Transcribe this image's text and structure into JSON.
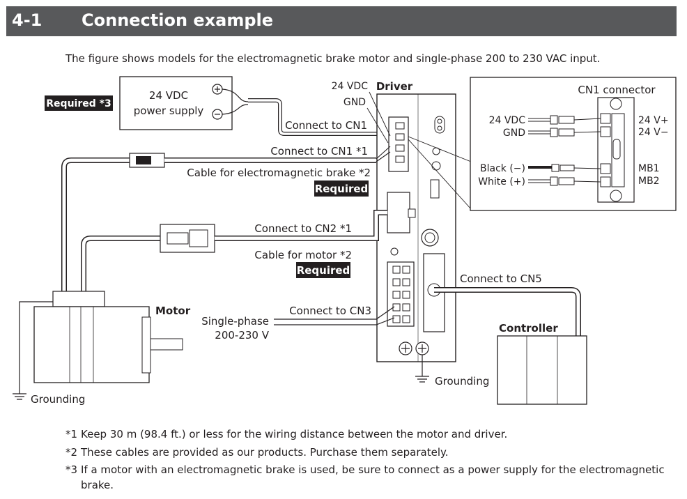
{
  "section": {
    "number": "4-1",
    "title": "Connection example"
  },
  "intro": "The figure shows models for the electromagnetic brake motor and single-phase 200 to 230 VAC input.",
  "diagram": {
    "required_brake_supply": "Required *3",
    "power_supply_line1": "24 VDC",
    "power_supply_line2": "power supply",
    "lbl_24vdc": "24 VDC",
    "lbl_gnd": "GND",
    "lbl_driver": "Driver",
    "lbl_connect_cn1": "Connect to CN1",
    "lbl_connect_cn1_note": "Connect to CN1 *1",
    "lbl_brake_cable": "Cable for electromagnetic brake *2",
    "lbl_required": "Required",
    "lbl_connect_cn2": "Connect to CN2 *1",
    "lbl_motor_cable": "Cable for motor *2",
    "lbl_motor": "Motor",
    "lbl_single_phase_1": "Single-phase",
    "lbl_single_phase_2": "200-230 V",
    "lbl_connect_cn3": "Connect to CN3",
    "lbl_connect_cn5": "Connect to CN5",
    "lbl_controller": "Controller",
    "lbl_grounding": "Grounding",
    "cn1_box": {
      "title": "CN1 connector",
      "left_24vdc": "24 VDC",
      "left_gnd": "GND",
      "left_black": "Black (−)",
      "left_white": "White (+)",
      "right_24vp": "24 V+",
      "right_24vm": "24 V−",
      "right_mb1": "MB1",
      "right_mb2": "MB2"
    }
  },
  "notes": [
    {
      "mark": "*1",
      "text": "Keep 30 m (98.4 ft.) or less for the wiring distance between the motor and driver."
    },
    {
      "mark": "*2",
      "text": "These cables are provided as our products. Purchase them separately."
    },
    {
      "mark": "*3",
      "text": "If a motor with an electromagnetic brake is used, be sure to connect as a power supply for the electromagnetic",
      "cont": "brake."
    }
  ]
}
